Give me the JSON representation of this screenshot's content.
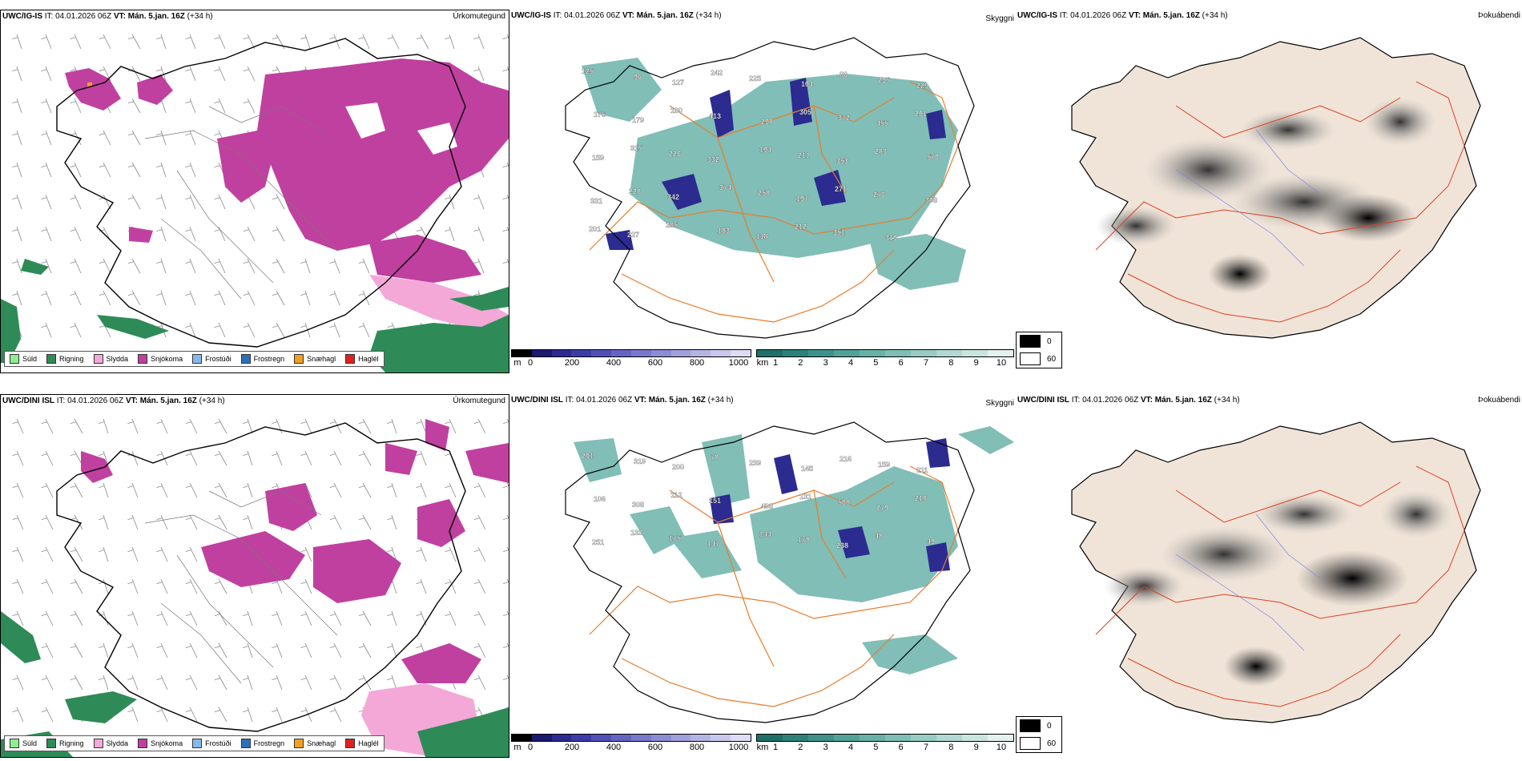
{
  "rows": [
    {
      "model": "UWC/IG-IS",
      "it_label": "IT:",
      "it_value": "04.01.2026 06Z",
      "vt_label": "VT:",
      "vt_value": "Mán. 5.jan. 16Z",
      "lead": "(+34 h)"
    },
    {
      "model": "UWC/DINI ISL",
      "it_label": "IT:",
      "it_value": "04.01.2026 06Z",
      "vt_label": "VT:",
      "vt_value": "Mán. 5.jan. 16Z",
      "lead": "(+34 h)"
    }
  ],
  "panel_titles": {
    "precip": "Úrkomutegund",
    "visibility": "Skyggni",
    "fog": "Þokuábendi"
  },
  "precip_legend": [
    {
      "label": "Súld",
      "color": "#90ee90"
    },
    {
      "label": "Rigning",
      "color": "#2e8b57"
    },
    {
      "label": "Slydda",
      "color": "#f4a8d8"
    },
    {
      "label": "Snjókoma",
      "color": "#c040a0"
    },
    {
      "label": "Frostúði",
      "color": "#87b8ec"
    },
    {
      "label": "Frostregn",
      "color": "#2f6fb8"
    },
    {
      "label": "Snæhagl",
      "color": "#f0a020"
    },
    {
      "label": "Haglél",
      "color": "#e02020"
    }
  ],
  "scale_m": {
    "unit": "m",
    "ticks": [
      "0",
      "200",
      "400",
      "600",
      "800",
      "1000"
    ],
    "colors": [
      "#000000",
      "#1a1a6e",
      "#2b2b90",
      "#3c3ca8",
      "#5050b8",
      "#6464c4",
      "#7878cc",
      "#8c8cd4",
      "#a0a0dc",
      "#b4b4e4",
      "#c8c8ec",
      "#dcdcf4"
    ]
  },
  "scale_km": {
    "unit": "km",
    "ticks": [
      "1",
      "2",
      "3",
      "4",
      "5",
      "6",
      "7",
      "8",
      "9",
      "10"
    ],
    "colors": [
      "#1f6f6a",
      "#2e817b",
      "#3f928b",
      "#52a29a",
      "#68b0a8",
      "#7fbeb6",
      "#98cbc4",
      "#b1d8d2",
      "#cae5e0",
      "#e3f2ef"
    ]
  },
  "cloud_legend": [
    {
      "label": "0",
      "color": "#000000"
    },
    {
      "label": "60",
      "color": "#ffffff"
    }
  ],
  "vis_labels_top": [
    "125",
    "96",
    "127",
    "242",
    "225",
    "104",
    "86",
    "295",
    "229",
    "175",
    "179",
    "180",
    "413",
    "298",
    "305",
    "372",
    "455",
    "201",
    "159",
    "315",
    "226",
    "332",
    "194",
    "211",
    "353",
    "283",
    "570",
    "331",
    "228",
    "342",
    "374",
    "258",
    "197",
    "271",
    "276",
    "308",
    "201",
    "227",
    "285",
    "183",
    "118",
    "212",
    "351",
    "319"
  ],
  "vis_labels_bottom": [
    "201",
    "319",
    "200",
    "78",
    "239",
    "145",
    "216",
    "159",
    "211",
    "106",
    "308",
    "112",
    "151",
    "498",
    "131",
    "508",
    "279",
    "218",
    "251",
    "133",
    "175",
    "147",
    "144",
    "178",
    "238",
    "48",
    "49"
  ]
}
